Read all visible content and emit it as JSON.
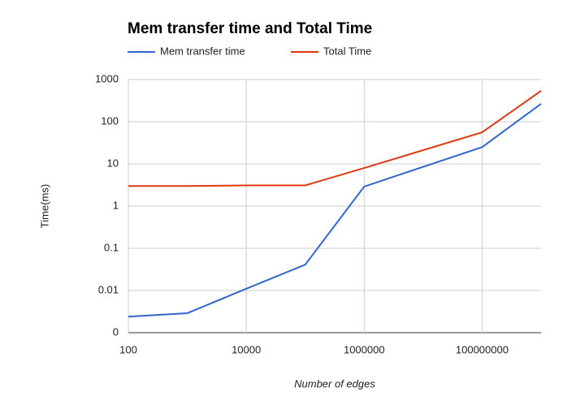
{
  "chart_data": {
    "type": "line",
    "title": "Mem transfer time and Total Time",
    "x_label": "Number of edges",
    "y_label": "Time(ms)",
    "x": [
      100,
      1000,
      10000,
      100000,
      1000000,
      100000000,
      1000000000
    ],
    "series": [
      {
        "name": "Mem transfer time",
        "color": "#3366cc",
        "values": [
          0.0024,
          0.0029,
          0.011,
          0.041,
          2.9,
          25,
          265
        ]
      },
      {
        "name": "Total Time",
        "color": "#dc3912",
        "values": [
          3.0,
          3.0,
          3.1,
          3.1,
          8,
          56,
          540
        ]
      }
    ],
    "xscale": "log",
    "yscale": "log",
    "xlim": [
      100,
      1000000000
    ],
    "xticks": [
      100,
      10000,
      1000000,
      100000000
    ],
    "ylim": [
      0.001,
      1000
    ],
    "yticks": [
      {
        "value": 0.001,
        "label": "0"
      },
      0.01,
      0.1,
      1,
      10,
      100,
      1000
    ],
    "grid": true,
    "legend": "top"
  }
}
